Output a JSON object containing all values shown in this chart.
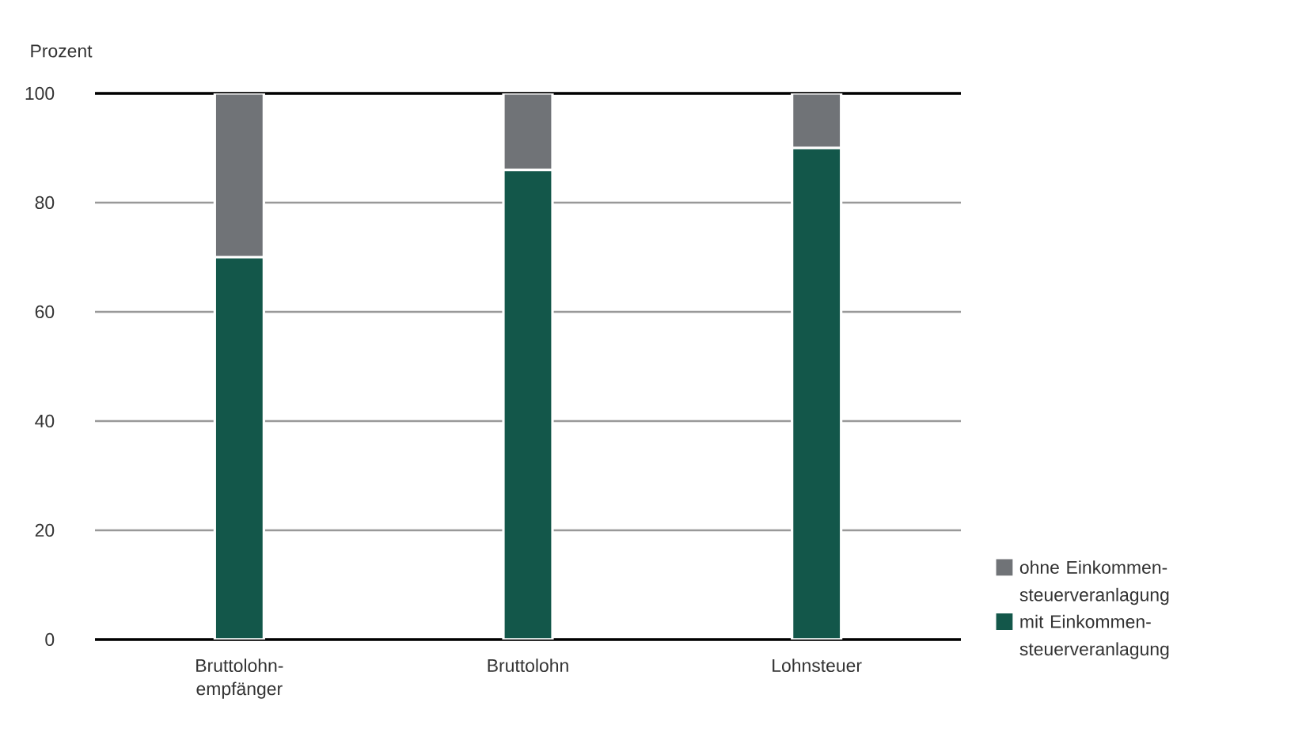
{
  "chart_data": {
    "type": "bar",
    "stacked": true,
    "ylabel": "Prozent",
    "categories": [
      "Bruttolohn-empfänger",
      "Bruttolohn",
      "Lohnsteuer"
    ],
    "series": [
      {
        "name": "mit Einkommen-steuerveranlagung",
        "color": "#13574a",
        "values": [
          70,
          86,
          90
        ]
      },
      {
        "name": "ohne Einkommen-steuerveranlagung",
        "color": "#707377",
        "values": [
          30,
          14,
          10
        ]
      }
    ],
    "ylim": [
      0,
      100
    ],
    "yticks": [
      0,
      20,
      40,
      60,
      80,
      100
    ],
    "grid": "y",
    "legend": "bottom right"
  }
}
